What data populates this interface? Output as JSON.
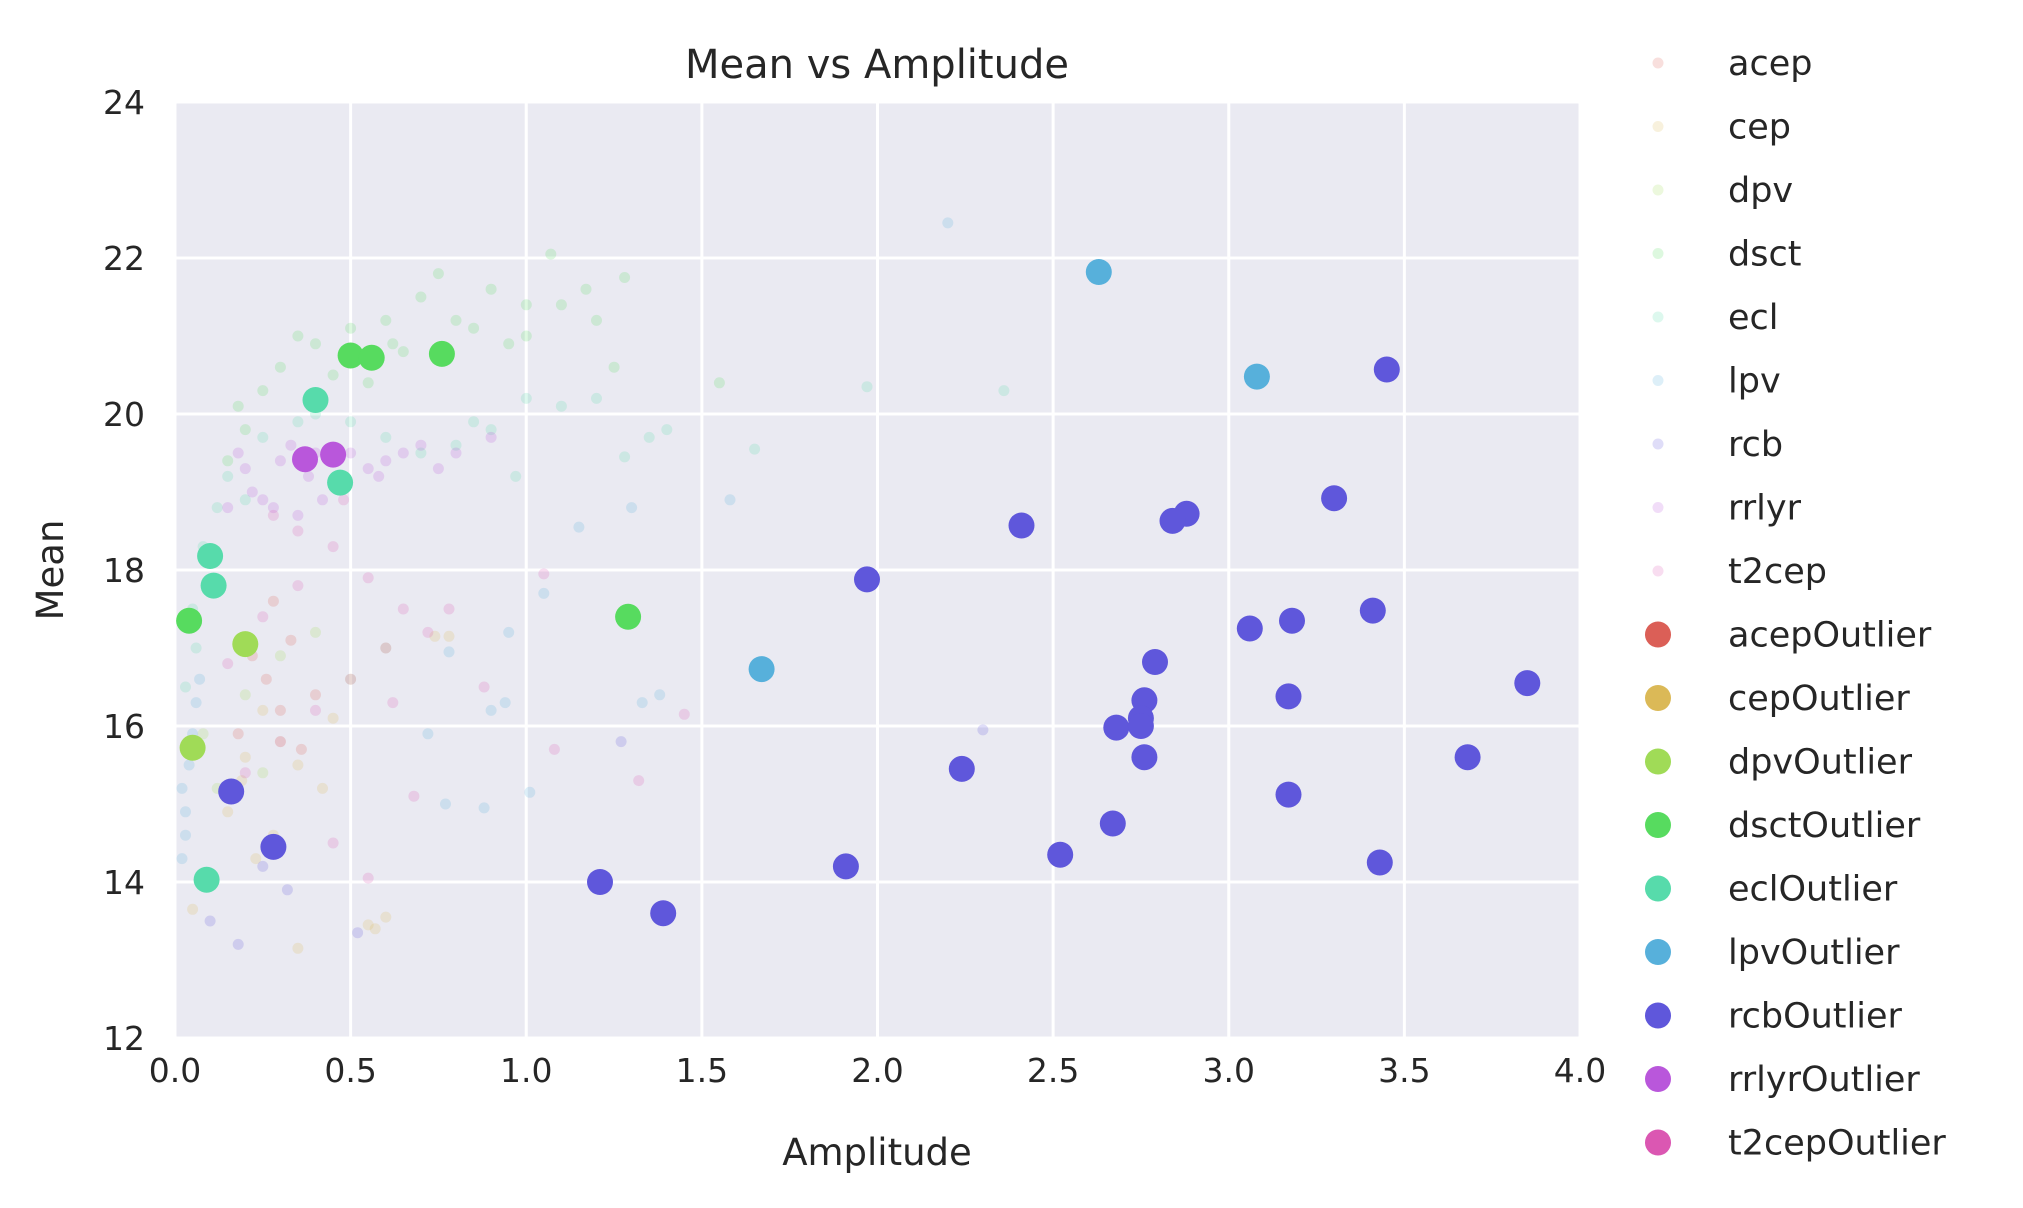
{
  "chart_data": {
    "type": "scatter",
    "title": "Mean vs Amplitude",
    "xlabel": "Amplitude",
    "ylabel": "Mean",
    "xlim": [
      0.0,
      4.0
    ],
    "ylim": [
      12,
      24
    ],
    "xticks": [
      "0.0",
      "0.5",
      "1.0",
      "1.5",
      "2.0",
      "2.5",
      "3.0",
      "3.5",
      "4.0"
    ],
    "yticks": [
      "12",
      "14",
      "16",
      "18",
      "20",
      "22",
      "24"
    ],
    "grid": true,
    "legend_position": "outside-right",
    "background_color": "#eaeaf2",
    "grid_color": "#ffffff",
    "series": [
      {
        "name": "acep",
        "color": "#db5f57",
        "kind": "background",
        "alpha": 0.2,
        "points": [
          [
            0.26,
            16.6
          ],
          [
            0.3,
            16.2
          ],
          [
            0.33,
            17.1
          ],
          [
            0.22,
            16.9
          ],
          [
            0.4,
            16.4
          ],
          [
            0.18,
            15.9
          ],
          [
            0.28,
            17.6
          ],
          [
            0.36,
            15.7
          ]
        ]
      },
      {
        "name": "cep",
        "color": "#dbb957",
        "kind": "background",
        "alpha": 0.2,
        "points": [
          [
            0.05,
            13.65
          ],
          [
            0.35,
            13.15
          ],
          [
            0.55,
            13.45
          ],
          [
            0.57,
            13.4
          ],
          [
            0.6,
            13.55
          ],
          [
            0.23,
            14.3
          ],
          [
            0.28,
            14.6
          ],
          [
            0.19,
            15.3
          ],
          [
            0.15,
            14.9
          ],
          [
            0.35,
            15.5
          ],
          [
            0.1,
            14.1
          ],
          [
            0.42,
            15.2
          ],
          [
            0.25,
            16.2
          ],
          [
            0.3,
            15.8
          ],
          [
            0.45,
            16.1
          ],
          [
            0.2,
            15.6
          ],
          [
            0.74,
            17.15
          ],
          [
            0.78,
            17.15
          ]
        ]
      },
      {
        "name": "dpv",
        "color": "#a0db57",
        "kind": "background",
        "alpha": 0.2,
        "points": [
          [
            0.12,
            15.2
          ],
          [
            0.2,
            16.4
          ],
          [
            0.3,
            16.9
          ],
          [
            0.08,
            15.9
          ],
          [
            0.4,
            17.2
          ],
          [
            0.25,
            15.4
          ],
          [
            0.5,
            16.6
          ],
          [
            0.6,
            17.0
          ]
        ]
      },
      {
        "name": "dsct",
        "color": "#57db5f",
        "kind": "background",
        "alpha": 0.2,
        "points": [
          [
            0.3,
            20.6
          ],
          [
            0.4,
            20.9
          ],
          [
            0.5,
            21.1
          ],
          [
            0.6,
            21.2
          ],
          [
            0.7,
            21.5
          ],
          [
            0.8,
            21.2
          ],
          [
            0.9,
            21.6
          ],
          [
            1.0,
            21.4
          ],
          [
            1.07,
            22.05
          ],
          [
            1.17,
            21.6
          ],
          [
            1.28,
            21.75
          ],
          [
            0.75,
            21.8
          ],
          [
            0.25,
            20.3
          ],
          [
            0.45,
            20.5
          ],
          [
            0.65,
            20.8
          ],
          [
            0.55,
            20.4
          ],
          [
            1.0,
            21.0
          ],
          [
            1.1,
            21.4
          ],
          [
            1.2,
            21.2
          ],
          [
            1.25,
            20.6
          ],
          [
            0.2,
            19.8
          ],
          [
            0.15,
            19.4
          ],
          [
            0.35,
            21.0
          ],
          [
            0.85,
            21.1
          ],
          [
            0.95,
            20.9
          ],
          [
            1.55,
            20.4
          ],
          [
            0.18,
            20.1
          ],
          [
            0.62,
            20.9
          ]
        ]
      },
      {
        "name": "ecl",
        "color": "#57dbab",
        "kind": "background",
        "alpha": 0.2,
        "points": [
          [
            0.05,
            17.5
          ],
          [
            0.08,
            18.3
          ],
          [
            0.12,
            18.8
          ],
          [
            0.15,
            19.2
          ],
          [
            0.25,
            19.7
          ],
          [
            0.35,
            19.9
          ],
          [
            0.6,
            19.7
          ],
          [
            0.7,
            19.5
          ],
          [
            0.8,
            19.6
          ],
          [
            0.9,
            19.8
          ],
          [
            1.0,
            20.2
          ],
          [
            1.1,
            20.1
          ],
          [
            1.2,
            20.2
          ],
          [
            1.35,
            19.7
          ],
          [
            1.4,
            19.8
          ],
          [
            1.65,
            19.55
          ],
          [
            1.97,
            20.35
          ],
          [
            2.36,
            20.3
          ],
          [
            0.5,
            19.9
          ],
          [
            0.4,
            20.0
          ],
          [
            0.85,
            19.9
          ],
          [
            0.03,
            16.5
          ],
          [
            0.06,
            17.0
          ],
          [
            0.1,
            17.8
          ],
          [
            0.2,
            18.9
          ],
          [
            1.28,
            19.45
          ],
          [
            0.97,
            19.2
          ]
        ]
      },
      {
        "name": "lpv",
        "color": "#57b0db",
        "kind": "background",
        "alpha": 0.2,
        "points": [
          [
            2.2,
            22.45
          ],
          [
            0.02,
            15.2
          ],
          [
            0.03,
            14.9
          ],
          [
            0.04,
            15.5
          ],
          [
            0.05,
            15.9
          ],
          [
            0.06,
            16.3
          ],
          [
            0.03,
            14.6
          ],
          [
            0.02,
            14.3
          ],
          [
            0.07,
            16.6
          ],
          [
            0.94,
            16.3
          ],
          [
            0.95,
            17.2
          ],
          [
            0.88,
            14.95
          ],
          [
            1.05,
            17.7
          ],
          [
            1.15,
            18.55
          ],
          [
            1.3,
            18.8
          ],
          [
            1.38,
            16.4
          ],
          [
            1.58,
            18.9
          ],
          [
            0.78,
            16.95
          ],
          [
            0.72,
            15.9
          ],
          [
            0.9,
            16.2
          ],
          [
            1.01,
            15.15
          ],
          [
            1.33,
            16.3
          ],
          [
            0.77,
            15.0
          ]
        ]
      },
      {
        "name": "rcb",
        "color": "#5f57db",
        "kind": "background",
        "alpha": 0.2,
        "points": [
          [
            0.18,
            13.2
          ],
          [
            0.1,
            13.5
          ],
          [
            0.52,
            13.35
          ],
          [
            1.27,
            15.8
          ],
          [
            2.3,
            15.95
          ],
          [
            0.25,
            14.2
          ],
          [
            0.32,
            13.9
          ]
        ]
      },
      {
        "name": "rrlyr",
        "color": "#b957db",
        "kind": "background",
        "alpha": 0.2,
        "points": [
          [
            0.15,
            18.8
          ],
          [
            0.2,
            19.3
          ],
          [
            0.25,
            18.9
          ],
          [
            0.3,
            19.4
          ],
          [
            0.35,
            18.7
          ],
          [
            0.4,
            19.5
          ],
          [
            0.45,
            19.1
          ],
          [
            0.5,
            19.5
          ],
          [
            0.55,
            19.3
          ],
          [
            0.6,
            19.4
          ],
          [
            0.65,
            19.5
          ],
          [
            0.7,
            19.6
          ],
          [
            0.8,
            19.5
          ],
          [
            0.9,
            19.7
          ],
          [
            0.22,
            19.0
          ],
          [
            0.28,
            18.8
          ],
          [
            0.38,
            19.2
          ],
          [
            0.18,
            19.5
          ],
          [
            0.42,
            18.9
          ],
          [
            0.33,
            19.6
          ],
          [
            0.58,
            19.2
          ],
          [
            0.75,
            19.3
          ]
        ]
      },
      {
        "name": "t2cep",
        "color": "#db57b2",
        "kind": "background",
        "alpha": 0.2,
        "points": [
          [
            0.15,
            16.8
          ],
          [
            0.25,
            17.4
          ],
          [
            0.35,
            17.8
          ],
          [
            0.45,
            18.3
          ],
          [
            0.55,
            17.9
          ],
          [
            0.65,
            17.5
          ],
          [
            0.6,
            17.0
          ],
          [
            0.5,
            16.6
          ],
          [
            0.4,
            16.2
          ],
          [
            0.3,
            15.8
          ],
          [
            0.2,
            15.4
          ],
          [
            0.72,
            17.2
          ],
          [
            0.78,
            17.5
          ],
          [
            0.88,
            16.5
          ],
          [
            1.05,
            17.95
          ],
          [
            1.08,
            15.7
          ],
          [
            1.45,
            16.15
          ],
          [
            1.32,
            15.3
          ],
          [
            0.68,
            15.1
          ],
          [
            0.55,
            14.05
          ],
          [
            0.45,
            14.5
          ],
          [
            0.62,
            16.3
          ],
          [
            0.28,
            18.7
          ],
          [
            0.35,
            18.5
          ],
          [
            0.48,
            18.9
          ]
        ]
      },
      {
        "name": "acepOutlier",
        "color": "#db5f57",
        "kind": "outlier",
        "points": []
      },
      {
        "name": "cepOutlier",
        "color": "#dbb957",
        "kind": "outlier",
        "points": []
      },
      {
        "name": "dpvOutlier",
        "color": "#a0db57",
        "kind": "outlier",
        "points": [
          [
            0.2,
            17.05
          ],
          [
            0.05,
            15.72
          ]
        ]
      },
      {
        "name": "dsctOutlier",
        "color": "#57db5f",
        "kind": "outlier",
        "points": [
          [
            0.5,
            20.75
          ],
          [
            0.56,
            20.72
          ],
          [
            0.76,
            20.77
          ],
          [
            0.04,
            17.35
          ],
          [
            1.29,
            17.4
          ]
        ]
      },
      {
        "name": "eclOutlier",
        "color": "#57dbab",
        "kind": "outlier",
        "points": [
          [
            0.4,
            20.18
          ],
          [
            0.47,
            19.12
          ],
          [
            0.1,
            18.18
          ],
          [
            0.11,
            17.8
          ],
          [
            0.09,
            14.03
          ]
        ]
      },
      {
        "name": "lpvOutlier",
        "color": "#57b0db",
        "kind": "outlier",
        "points": [
          [
            2.63,
            21.82
          ],
          [
            3.08,
            20.48
          ],
          [
            1.67,
            16.73
          ]
        ]
      },
      {
        "name": "rcbOutlier",
        "color": "#5f57db",
        "kind": "outlier",
        "points": [
          [
            3.45,
            20.57
          ],
          [
            3.3,
            18.92
          ],
          [
            2.88,
            18.72
          ],
          [
            2.84,
            18.63
          ],
          [
            2.41,
            18.57
          ],
          [
            1.97,
            17.88
          ],
          [
            3.41,
            17.48
          ],
          [
            3.18,
            17.35
          ],
          [
            3.06,
            17.25
          ],
          [
            2.79,
            16.82
          ],
          [
            3.85,
            16.55
          ],
          [
            3.17,
            16.38
          ],
          [
            2.76,
            16.33
          ],
          [
            2.68,
            15.98
          ],
          [
            2.75,
            16.1
          ],
          [
            2.75,
            16.0
          ],
          [
            3.68,
            15.6
          ],
          [
            2.76,
            15.6
          ],
          [
            2.24,
            15.45
          ],
          [
            3.17,
            15.12
          ],
          [
            0.16,
            15.16
          ],
          [
            2.67,
            14.75
          ],
          [
            2.52,
            14.35
          ],
          [
            0.28,
            14.45
          ],
          [
            3.43,
            14.25
          ],
          [
            1.91,
            14.2
          ],
          [
            1.21,
            14.0
          ],
          [
            1.39,
            13.6
          ]
        ]
      },
      {
        "name": "rrlyrOutlier",
        "color": "#b957db",
        "kind": "outlier",
        "points": [
          [
            0.37,
            19.42
          ],
          [
            0.45,
            19.48
          ]
        ]
      },
      {
        "name": "t2cepOutlier",
        "color": "#db57b2",
        "kind": "outlier",
        "points": []
      }
    ]
  }
}
